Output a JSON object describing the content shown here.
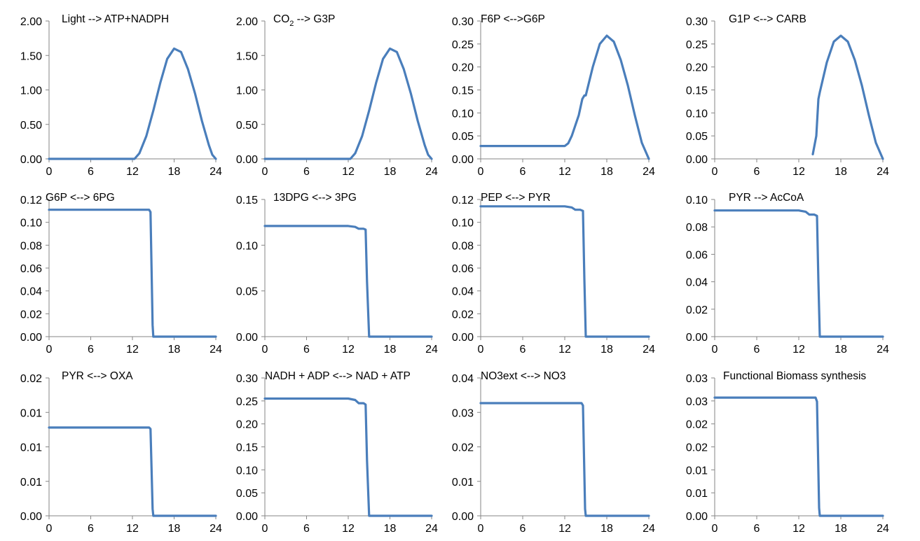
{
  "colors": {
    "series": "#4a7ebb",
    "axis": "#868686"
  },
  "chart_data": [
    {
      "type": "line",
      "title": "Light --> ATP+NADPH",
      "xlim": [
        0,
        24
      ],
      "ylim": [
        0,
        2
      ],
      "xticks": [
        "0",
        "6",
        "12",
        "18",
        "24"
      ],
      "yticks": [
        "0.00",
        "0.50",
        "1.00",
        "1.50",
        "2.00"
      ],
      "grid": false,
      "series": [
        {
          "x": [
            0,
            12.3,
            13,
            14,
            15,
            16,
            17,
            18,
            19,
            20,
            21,
            22,
            23,
            23.5,
            24
          ],
          "y": [
            0,
            0,
            0.08,
            0.33,
            0.7,
            1.1,
            1.45,
            1.6,
            1.55,
            1.3,
            0.95,
            0.55,
            0.2,
            0.06,
            0
          ]
        }
      ]
    },
    {
      "type": "line",
      "title": "CO2 --> G3P",
      "xlim": [
        0,
        24
      ],
      "ylim": [
        0,
        2
      ],
      "xticks": [
        "0",
        "6",
        "12",
        "18",
        "24"
      ],
      "yticks": [
        "0.00",
        "0.50",
        "1.00",
        "1.50",
        "2.00"
      ],
      "grid": false,
      "series": [
        {
          "x": [
            0,
            12.3,
            13,
            14,
            15,
            16,
            17,
            18,
            19,
            20,
            21,
            22,
            23,
            23.5,
            24
          ],
          "y": [
            0,
            0,
            0.08,
            0.33,
            0.7,
            1.1,
            1.45,
            1.6,
            1.55,
            1.3,
            0.95,
            0.55,
            0.2,
            0.06,
            0
          ]
        }
      ]
    },
    {
      "type": "line",
      "title": "F6P <-->G6P",
      "xlim": [
        0,
        24
      ],
      "ylim": [
        0,
        0.3
      ],
      "xticks": [
        "0",
        "6",
        "12",
        "18",
        "24"
      ],
      "yticks": [
        "0.00",
        "0.05",
        "0.10",
        "0.15",
        "0.20",
        "0.25",
        "0.30"
      ],
      "grid": false,
      "series": [
        {
          "x": [
            0,
            12,
            12.5,
            13,
            14,
            14.5,
            14.8,
            15,
            16,
            17,
            18,
            19,
            20,
            21,
            22,
            23,
            24
          ],
          "y": [
            0.028,
            0.028,
            0.034,
            0.05,
            0.095,
            0.13,
            0.138,
            0.138,
            0.2,
            0.25,
            0.268,
            0.255,
            0.215,
            0.16,
            0.095,
            0.035,
            0
          ]
        }
      ]
    },
    {
      "type": "line",
      "title": "G1P <--> CARB",
      "xlim": [
        0,
        24
      ],
      "ylim": [
        0,
        0.3
      ],
      "xticks": [
        "0",
        "6",
        "12",
        "18",
        "24"
      ],
      "yticks": [
        "0.00",
        "0.05",
        "0.10",
        "0.15",
        "0.20",
        "0.25",
        "0.30"
      ],
      "grid": false,
      "series": [
        {
          "x": [
            14,
            14.5,
            14.8,
            15,
            16,
            17,
            18,
            19,
            20,
            21,
            22,
            23,
            24
          ],
          "y": [
            0.01,
            0.05,
            0.13,
            0.145,
            0.21,
            0.255,
            0.268,
            0.255,
            0.215,
            0.16,
            0.095,
            0.035,
            0
          ]
        }
      ]
    },
    {
      "type": "line",
      "title": "G6P <--> 6PG",
      "xlim": [
        0,
        24
      ],
      "ylim": [
        0,
        0.12
      ],
      "xticks": [
        "0",
        "6",
        "12",
        "18",
        "24"
      ],
      "yticks": [
        "0.00",
        "0.02",
        "0.04",
        "0.06",
        "0.08",
        "0.10",
        "0.12"
      ],
      "grid": false,
      "series": [
        {
          "x": [
            0,
            14,
            14.4,
            14.6,
            14.9,
            15,
            24
          ],
          "y": [
            0.111,
            0.111,
            0.111,
            0.109,
            0.01,
            0,
            0
          ]
        }
      ]
    },
    {
      "type": "line",
      "title": "13DPG <--> 3PG",
      "xlim": [
        0,
        24
      ],
      "ylim": [
        0,
        0.15
      ],
      "xticks": [
        "0",
        "6",
        "12",
        "18",
        "24"
      ],
      "yticks": [
        "0.00",
        "0.05",
        "0.10",
        "0.15"
      ],
      "grid": false,
      "series": [
        {
          "x": [
            0,
            12,
            13,
            13.5,
            14.2,
            14.5,
            14.7,
            15,
            24
          ],
          "y": [
            0.121,
            0.121,
            0.12,
            0.118,
            0.118,
            0.117,
            0.06,
            0,
            0
          ]
        }
      ]
    },
    {
      "type": "line",
      "title": "PEP <--> PYR",
      "xlim": [
        0,
        24
      ],
      "ylim": [
        0,
        0.12
      ],
      "xticks": [
        "0",
        "6",
        "12",
        "18",
        "24"
      ],
      "yticks": [
        "0.00",
        "0.02",
        "0.04",
        "0.06",
        "0.08",
        "0.10",
        "0.12"
      ],
      "grid": false,
      "series": [
        {
          "x": [
            0,
            12,
            13,
            13.5,
            14.2,
            14.6,
            14.8,
            15,
            24
          ],
          "y": [
            0.114,
            0.114,
            0.113,
            0.111,
            0.111,
            0.11,
            0.05,
            0,
            0
          ]
        }
      ]
    },
    {
      "type": "line",
      "title": "PYR --> AcCoA",
      "xlim": [
        0,
        24
      ],
      "ylim": [
        0,
        0.1
      ],
      "xticks": [
        "0",
        "6",
        "12",
        "18",
        "24"
      ],
      "yticks": [
        "0.00",
        "0.02",
        "0.04",
        "0.06",
        "0.08",
        "0.10"
      ],
      "grid": false,
      "series": [
        {
          "x": [
            0,
            12,
            13,
            13.5,
            14.2,
            14.6,
            14.8,
            15,
            24
          ],
          "y": [
            0.092,
            0.092,
            0.091,
            0.089,
            0.089,
            0.088,
            0.04,
            0,
            0
          ]
        }
      ]
    },
    {
      "type": "line",
      "title": "PYR <--> OXA",
      "xlim": [
        0,
        24
      ],
      "ylim": [
        0,
        0.02
      ],
      "xticks": [
        "0",
        "6",
        "12",
        "18",
        "24"
      ],
      "yticks": [
        "0.00",
        "0.01",
        "0.01",
        "0.01",
        "0.02"
      ],
      "grid": false,
      "series": [
        {
          "x": [
            0,
            14,
            14.4,
            14.6,
            14.9,
            15,
            24
          ],
          "y": [
            0.0128,
            0.0128,
            0.0128,
            0.0126,
            0.001,
            0,
            0
          ]
        }
      ]
    },
    {
      "type": "line",
      "title": "NADH + ADP <--> NAD + ATP",
      "xlim": [
        0,
        24
      ],
      "ylim": [
        0,
        0.3
      ],
      "xticks": [
        "0",
        "6",
        "12",
        "18",
        "24"
      ],
      "yticks": [
        "0.00",
        "0.05",
        "0.10",
        "0.15",
        "0.20",
        "0.25",
        "0.30"
      ],
      "grid": false,
      "series": [
        {
          "x": [
            0,
            12,
            13,
            13.5,
            14.2,
            14.5,
            14.7,
            15,
            24
          ],
          "y": [
            0.255,
            0.255,
            0.252,
            0.245,
            0.245,
            0.242,
            0.12,
            0,
            0
          ]
        }
      ]
    },
    {
      "type": "line",
      "title": "NO3ext <--> NO3",
      "xlim": [
        0,
        24
      ],
      "ylim": [
        0,
        0.04
      ],
      "xticks": [
        "0",
        "6",
        "12",
        "18",
        "24"
      ],
      "yticks": [
        "0.00",
        "0.01",
        "0.02",
        "0.03",
        "0.04"
      ],
      "grid": false,
      "series": [
        {
          "x": [
            0,
            14,
            14.4,
            14.6,
            14.9,
            15,
            24
          ],
          "y": [
            0.0327,
            0.0327,
            0.0327,
            0.032,
            0.002,
            0,
            0
          ]
        }
      ]
    },
    {
      "type": "line",
      "title": "Functional Biomass synthesis",
      "xlim": [
        0,
        24
      ],
      "ylim": [
        0,
        0.035
      ],
      "xticks": [
        "0",
        "6",
        "12",
        "18",
        "24"
      ],
      "yticks": [
        "0.00",
        "0.01",
        "0.01",
        "0.02",
        "0.02",
        "0.03",
        "0.03"
      ],
      "grid": false,
      "series": [
        {
          "x": [
            0,
            14,
            14.4,
            14.6,
            14.9,
            15,
            24
          ],
          "y": [
            0.03,
            0.03,
            0.03,
            0.029,
            0.002,
            0,
            0
          ]
        }
      ]
    }
  ]
}
